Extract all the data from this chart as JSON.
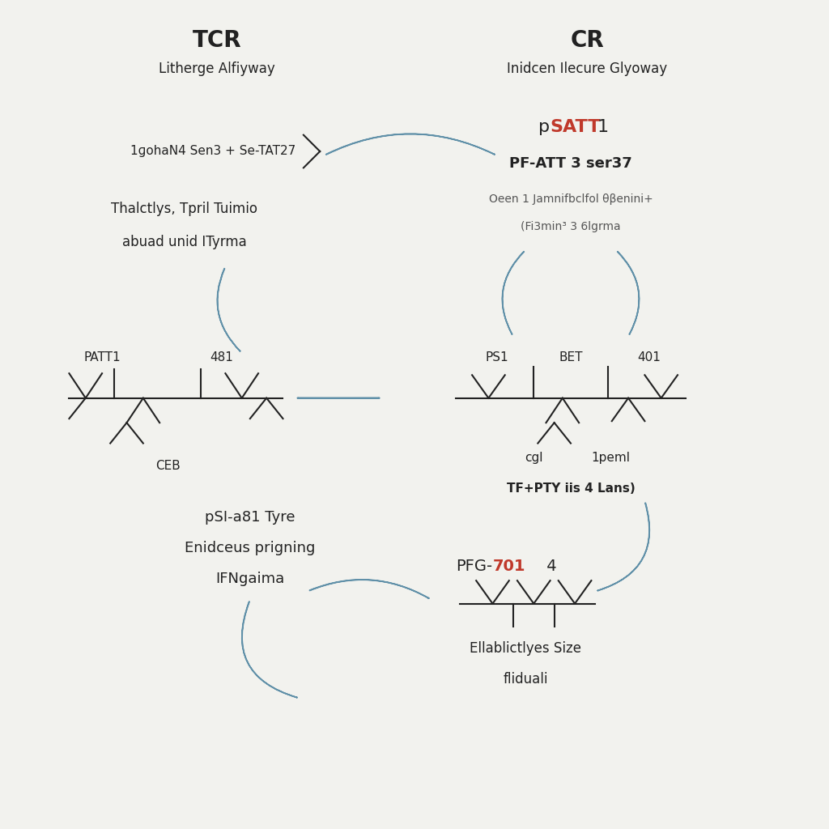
{
  "bg_color": "#f2f2ee",
  "arrow_color": "#8ab0c8",
  "arrow_edge_color": "#6090a8",
  "text_color_dark": "#222222",
  "text_color_red": "#c0392b",
  "title_tcr": "TCR",
  "subtitle_tcr": "Litherge Alfiyway",
  "title_cr": "CR",
  "subtitle_cr": "Inidcen Ilecure Glyoway",
  "label_left_top": "1ɡohaN4 Sen3 + Se-TAT27",
  "label_left_mid1": "Thalctlys, Tpril Tuimio",
  "label_left_mid2": "abuad unid ITyrma",
  "label_pSATT1_p": "p",
  "label_pSATT1_SATT": "SATT",
  "label_pSATT1_1": "1",
  "label_PFATT": "PF-ATT 3 ser37",
  "label_cr_desc1": "Oeen 1 Jamnifbclfol θβenini+",
  "label_cr_desc2": "(Fi3min³ 3 6lgrma",
  "label_PS1": "PS1",
  "label_BET": "BET",
  "label_401": "401",
  "label_cgl": "cgl",
  "label_1peml": "1peml",
  "label_TFPTY": "TF+PTY iis 4 Lans)",
  "label_PATT1": "PATT1",
  "label_481": "481",
  "label_CEB": "CEB",
  "label_pSI": "pSI-a81 Tyre",
  "label_Enid": "Enidceus prigning",
  "label_IFNgaima": "IFNgaima",
  "label_PFG": "PFG-",
  "label_701": "701",
  "label_4": " 4",
  "label_Ellablict": "Ellablictlyes Size",
  "label_fliduali": "fliduali"
}
